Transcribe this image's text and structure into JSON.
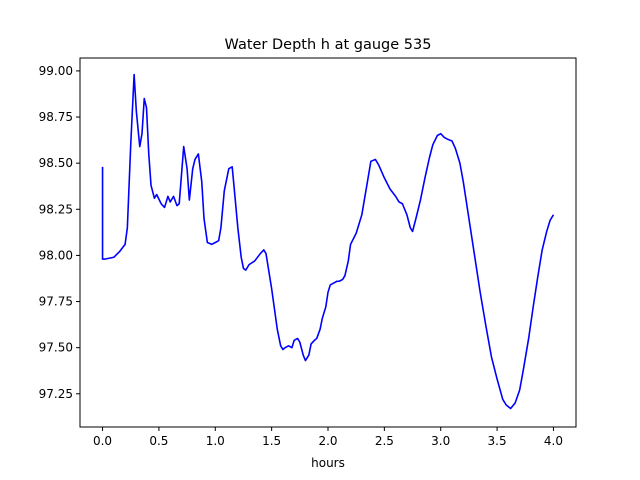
{
  "chart_data": {
    "type": "line",
    "title": "Water Depth h at gauge 535",
    "xlabel": "hours",
    "ylabel": "",
    "xlim": [
      -0.2,
      4.2
    ],
    "ylim": [
      97.07,
      99.07
    ],
    "xticks": [
      0.0,
      0.5,
      1.0,
      1.5,
      2.0,
      2.5,
      3.0,
      3.5,
      4.0
    ],
    "xtick_labels": [
      "0.0",
      "0.5",
      "1.0",
      "1.5",
      "2.0",
      "2.5",
      "3.0",
      "3.5",
      "4.0"
    ],
    "yticks": [
      97.25,
      97.5,
      97.75,
      98.0,
      98.25,
      98.5,
      98.75,
      99.0
    ],
    "ytick_labels": [
      "97.25",
      "97.50",
      "97.75",
      "98.00",
      "98.25",
      "98.50",
      "98.75",
      "99.00"
    ],
    "grid": false,
    "series": [
      {
        "color": "#0000ff",
        "x": [
          0.0,
          0.0,
          0.02,
          0.1,
          0.15,
          0.2,
          0.22,
          0.25,
          0.28,
          0.3,
          0.33,
          0.35,
          0.37,
          0.39,
          0.41,
          0.43,
          0.46,
          0.48,
          0.52,
          0.55,
          0.58,
          0.6,
          0.63,
          0.66,
          0.68,
          0.72,
          0.75,
          0.77,
          0.8,
          0.82,
          0.85,
          0.88,
          0.9,
          0.93,
          0.97,
          1.0,
          1.03,
          1.05,
          1.08,
          1.12,
          1.15,
          1.17,
          1.2,
          1.23,
          1.25,
          1.27,
          1.3,
          1.35,
          1.4,
          1.43,
          1.45,
          1.5,
          1.55,
          1.58,
          1.6,
          1.62,
          1.65,
          1.68,
          1.7,
          1.73,
          1.75,
          1.78,
          1.8,
          1.83,
          1.85,
          1.88,
          1.9,
          1.93,
          1.95,
          1.98,
          2.0,
          2.02,
          2.05,
          2.08,
          2.1,
          2.13,
          2.15,
          2.18,
          2.2,
          2.25,
          2.3,
          2.35,
          2.38,
          2.42,
          2.45,
          2.5,
          2.55,
          2.6,
          2.63,
          2.66,
          2.7,
          2.73,
          2.75,
          2.78,
          2.82,
          2.86,
          2.9,
          2.93,
          2.97,
          3.0,
          3.03,
          3.06,
          3.1,
          3.13,
          3.17,
          3.2,
          3.25,
          3.3,
          3.35,
          3.4,
          3.45,
          3.5,
          3.55,
          3.58,
          3.62,
          3.66,
          3.7,
          3.73,
          3.78,
          3.82,
          3.86,
          3.9,
          3.94,
          3.97,
          4.0
        ],
        "y": [
          98.48,
          97.98,
          97.98,
          97.99,
          98.02,
          98.06,
          98.15,
          98.6,
          98.98,
          98.78,
          98.59,
          98.66,
          98.85,
          98.8,
          98.55,
          98.38,
          98.31,
          98.33,
          98.28,
          98.26,
          98.32,
          98.29,
          98.32,
          98.27,
          98.28,
          98.59,
          98.47,
          98.3,
          98.47,
          98.52,
          98.55,
          98.4,
          98.2,
          98.07,
          98.06,
          98.07,
          98.08,
          98.15,
          98.35,
          98.47,
          98.48,
          98.35,
          98.15,
          97.99,
          97.93,
          97.92,
          97.95,
          97.97,
          98.01,
          98.03,
          98.01,
          97.82,
          97.6,
          97.51,
          97.49,
          97.5,
          97.51,
          97.5,
          97.54,
          97.55,
          97.53,
          97.46,
          97.43,
          97.46,
          97.52,
          97.54,
          97.55,
          97.6,
          97.66,
          97.72,
          97.8,
          97.84,
          97.85,
          97.86,
          97.86,
          97.87,
          97.89,
          97.97,
          98.06,
          98.12,
          98.22,
          98.4,
          98.51,
          98.52,
          98.49,
          98.42,
          98.36,
          98.32,
          98.29,
          98.28,
          98.22,
          98.15,
          98.13,
          98.2,
          98.3,
          98.42,
          98.53,
          98.6,
          98.65,
          98.66,
          98.64,
          98.63,
          98.62,
          98.58,
          98.5,
          98.4,
          98.2,
          98.0,
          97.8,
          97.62,
          97.45,
          97.33,
          97.22,
          97.19,
          97.17,
          97.2,
          97.27,
          97.37,
          97.55,
          97.72,
          97.88,
          98.03,
          98.13,
          98.19,
          98.22
        ]
      }
    ]
  }
}
